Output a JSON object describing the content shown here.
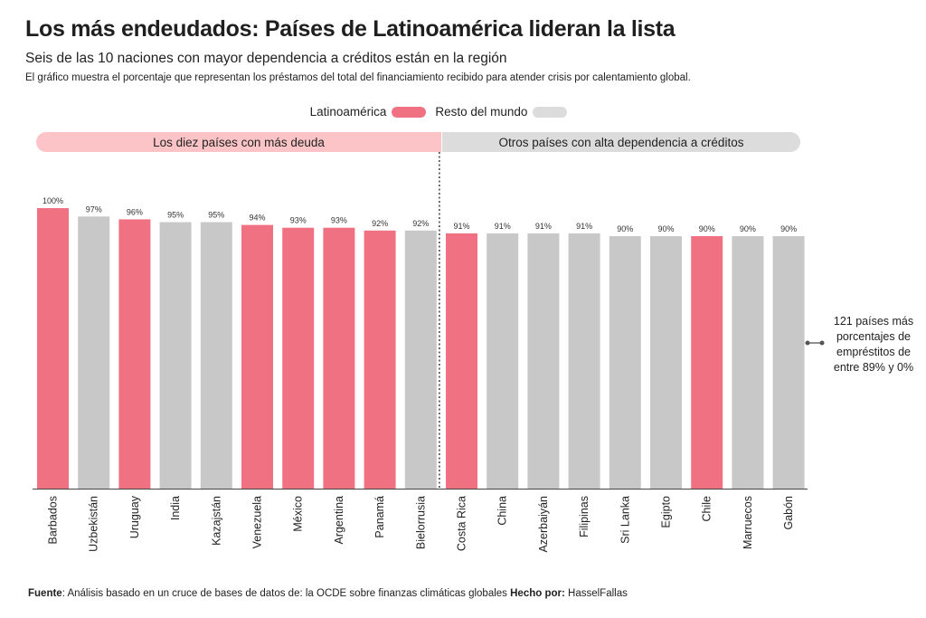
{
  "chart_data": {
    "type": "bar",
    "title": "Los más endeudados: Países de Latinoamérica lideran la lista",
    "subtitle": "Seis de las 10 naciones con mayor dependencia a créditos están en la región",
    "description": "El gráfico muestra el porcentaje que representan los préstamos del total del financiamiento recibido para atender crisis por calentamiento global.",
    "legend": [
      {
        "label": "Latinoamérica",
        "color": "#f07282"
      },
      {
        "label": "Resto del mundo",
        "color": "#c8c8c8"
      }
    ],
    "groups": [
      {
        "label": "Los diez países con más deuda",
        "count": 10
      },
      {
        "label": "Otros países con alta dependencia a créditos",
        "count": 9
      }
    ],
    "categories": [
      "Barbados",
      "Uzbekistán",
      "Uruguay",
      "India",
      "Kazajstán",
      "Venezuela",
      "México",
      "Argentina",
      "Panamá",
      "Bielorrusia",
      "Costa Rica",
      "China",
      "Azerbaiyán",
      "Filipinas",
      "Sri Lanka",
      "Egipto",
      "Chile",
      "Marruecos",
      "Gabón"
    ],
    "values": [
      100,
      97,
      96,
      95,
      95,
      94,
      93,
      93,
      92,
      92,
      91,
      91,
      91,
      91,
      90,
      90,
      90,
      90,
      90
    ],
    "value_labels": [
      "100%",
      "97%",
      "96%",
      "95%",
      "95%",
      "94%",
      "93%",
      "93%",
      "92%",
      "92%",
      "91%",
      "91%",
      "91%",
      "91%",
      "90%",
      "90%",
      "90%",
      "90%",
      "90%"
    ],
    "region": [
      "Latinoamérica",
      "Resto del mundo",
      "Latinoamérica",
      "Resto del mundo",
      "Resto del mundo",
      "Latinoamérica",
      "Latinoamérica",
      "Latinoamérica",
      "Latinoamérica",
      "Resto del mundo",
      "Latinoamérica",
      "Resto del mundo",
      "Resto del mundo",
      "Resto del mundo",
      "Resto del mundo",
      "Resto del mundo",
      "Latinoamérica",
      "Resto del mundo",
      "Resto del mundo"
    ],
    "ylim": [
      0,
      100
    ],
    "annotation": "121 países más porcentajes de empréstitos de entre 89% y 0%"
  },
  "footer": {
    "source_label": "Fuente",
    "source_text": ": Análisis basado en un cruce de bases de datos de: la OCDE sobre finanzas climáticas globales ",
    "author_label": "Hecho por:",
    "author_text": " HasselFallas"
  }
}
